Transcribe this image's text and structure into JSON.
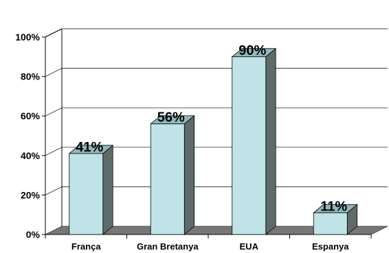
{
  "chart_data": {
    "type": "bar",
    "categories": [
      "França",
      "Gran Bretanya",
      "EUA",
      "Espanya"
    ],
    "values": [
      41,
      56,
      90,
      11
    ],
    "data_labels": [
      "41%",
      "56%",
      "90%",
      "11%"
    ],
    "y_ticks": [
      0,
      20,
      40,
      60,
      80,
      100
    ],
    "y_tick_labels": [
      "0%",
      "20%",
      "40%",
      "60%",
      "80%",
      "100%"
    ],
    "ylim": [
      0,
      100
    ],
    "grid": true,
    "style": "3d",
    "colors": {
      "bar_front": "#bfe3e6",
      "bar_side": "#5e6b6b",
      "bar_top": "#8fb8bb",
      "floor": "#777777",
      "grid": "#000000"
    }
  }
}
